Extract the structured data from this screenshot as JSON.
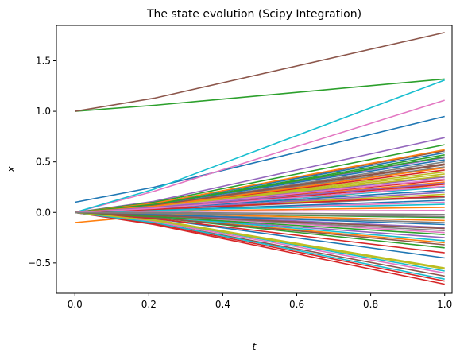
{
  "chart_data": {
    "type": "line",
    "title": "The state evolution (Scipy Integration)",
    "xlabel": "t",
    "ylabel": "x",
    "xlim": [
      -0.05,
      1.02
    ],
    "ylim": [
      -0.8,
      1.85
    ],
    "xticks": [
      0.0,
      0.2,
      0.4,
      0.6,
      0.8,
      1.0
    ],
    "xtick_labels": [
      "0.0",
      "0.2",
      "0.4",
      "0.6",
      "0.8",
      "1.0"
    ],
    "yticks": [
      -0.5,
      0.0,
      0.5,
      1.0,
      1.5
    ],
    "ytick_labels": [
      "−0.5",
      "0.0",
      "0.5",
      "1.0",
      "1.5"
    ],
    "grid": false,
    "legend": "none",
    "palette": [
      "#1f77b4",
      "#ff7f0e",
      "#2ca02c",
      "#d62728",
      "#9467bd",
      "#8c564b",
      "#e377c2",
      "#7f7f7f",
      "#bcbd22",
      "#17becf"
    ],
    "x": [
      0.0,
      0.214,
      1.0
    ],
    "series": [
      {
        "values": [
          0.1,
          0.25,
          0.95
        ]
      },
      {
        "values": [
          -0.1,
          -0.03,
          0.28
        ]
      },
      {
        "values": [
          1.0,
          1.06,
          1.32
        ]
      },
      {
        "values": [
          0.0,
          -0.12,
          -0.71
        ]
      },
      {
        "values": [
          0.0,
          0.11,
          0.74
        ]
      },
      {
        "values": [
          1.0,
          1.13,
          1.78
        ]
      },
      {
        "values": [
          0.0,
          0.21,
          1.11
        ]
      },
      {
        "values": [
          0.0,
          0.07,
          0.45
        ]
      },
      {
        "values": [
          0.0,
          -0.07,
          -0.55
        ]
      },
      {
        "values": [
          0.0,
          0.23,
          1.31
        ]
      },
      {
        "values": [
          0.0,
          -0.06,
          -0.45
        ]
      },
      {
        "values": [
          0.0,
          0.05,
          0.3
        ]
      },
      {
        "values": [
          0.0,
          0.1,
          0.67
        ]
      },
      {
        "values": [
          0.0,
          -0.11,
          -0.68
        ]
      },
      {
        "values": [
          0.0,
          0.08,
          0.54
        ]
      },
      {
        "values": [
          0.0,
          0.09,
          0.61
        ]
      },
      {
        "values": [
          0.0,
          -0.03,
          -0.2
        ]
      },
      {
        "values": [
          0.0,
          0.07,
          0.5
        ]
      },
      {
        "values": [
          0.0,
          0.06,
          0.4
        ]
      },
      {
        "values": [
          0.0,
          0.04,
          0.25
        ]
      },
      {
        "values": [
          0.0,
          0.09,
          0.59
        ]
      },
      {
        "values": [
          0.0,
          -0.05,
          -0.3
        ]
      },
      {
        "values": [
          0.0,
          0.08,
          0.57
        ]
      },
      {
        "values": [
          0.0,
          0.06,
          0.42
        ]
      },
      {
        "values": [
          0.0,
          0.05,
          0.35
        ]
      },
      {
        "values": [
          0.0,
          -0.1,
          -0.63
        ]
      },
      {
        "values": [
          0.0,
          0.02,
          0.1
        ]
      },
      {
        "values": [
          0.0,
          -0.02,
          -0.1
        ]
      },
      {
        "values": [
          0.0,
          0.03,
          0.18
        ]
      },
      {
        "values": [
          0.0,
          -0.08,
          -0.58
        ]
      },
      {
        "values": [
          0.0,
          0.08,
          0.52
        ]
      },
      {
        "values": [
          0.0,
          0.01,
          0.05
        ]
      },
      {
        "values": [
          0.0,
          -0.01,
          -0.05
        ]
      },
      {
        "values": [
          0.0,
          0.04,
          0.28
        ]
      },
      {
        "values": [
          0.0,
          -0.04,
          -0.25
        ]
      },
      {
        "values": [
          0.0,
          0.07,
          0.48
        ]
      },
      {
        "values": [
          0.0,
          -0.09,
          -0.6
        ]
      },
      {
        "values": [
          0.0,
          0.03,
          0.15
        ]
      },
      {
        "values": [
          0.0,
          0.06,
          0.38
        ]
      },
      {
        "values": [
          0.0,
          -0.04,
          -0.28
        ]
      },
      {
        "values": [
          0.0,
          0.02,
          0.12
        ]
      },
      {
        "values": [
          0.0,
          0.09,
          0.62
        ]
      },
      {
        "values": [
          0.0,
          -0.05,
          -0.35
        ]
      },
      {
        "values": [
          0.0,
          0.05,
          0.32
        ]
      },
      {
        "values": [
          0.0,
          -0.02,
          -0.15
        ]
      },
      {
        "values": [
          0.0,
          0.07,
          0.47
        ]
      },
      {
        "values": [
          0.0,
          0.01,
          0.02
        ]
      },
      {
        "values": [
          0.0,
          -0.03,
          -0.18
        ]
      },
      {
        "values": [
          0.0,
          0.06,
          0.36
        ]
      },
      {
        "values": [
          0.0,
          -0.1,
          -0.66
        ]
      },
      {
        "values": [
          0.0,
          0.04,
          0.22
        ]
      },
      {
        "values": [
          0.0,
          -0.01,
          -0.08
        ]
      },
      {
        "values": [
          0.0,
          0.08,
          0.55
        ]
      },
      {
        "values": [
          0.0,
          -0.06,
          -0.4
        ]
      },
      {
        "values": [
          0.0,
          0.03,
          0.2
        ]
      },
      {
        "values": [
          0.0,
          -0.05,
          -0.32
        ]
      },
      {
        "values": [
          0.0,
          0.05,
          0.33
        ]
      },
      {
        "values": [
          0.0,
          0.0,
          -0.02
        ]
      },
      {
        "values": [
          0.0,
          -0.08,
          -0.56
        ]
      },
      {
        "values": [
          0.0,
          0.02,
          0.08
        ]
      },
      {
        "values": [
          0.0,
          -0.02,
          -0.12
        ]
      },
      {
        "values": [
          0.0,
          0.06,
          0.44
        ]
      },
      {
        "values": [
          0.0,
          -0.04,
          -0.22
        ]
      },
      {
        "values": [
          0.0,
          0.03,
          0.16
        ]
      },
      {
        "values": [
          0.0,
          0.05,
          0.29
        ]
      },
      {
        "values": [
          0.0,
          -0.03,
          -0.16
        ]
      },
      {
        "values": [
          0.0,
          0.04,
          0.26
        ]
      },
      {
        "values": [
          0.0,
          -0.01,
          -0.04
        ]
      }
    ]
  }
}
